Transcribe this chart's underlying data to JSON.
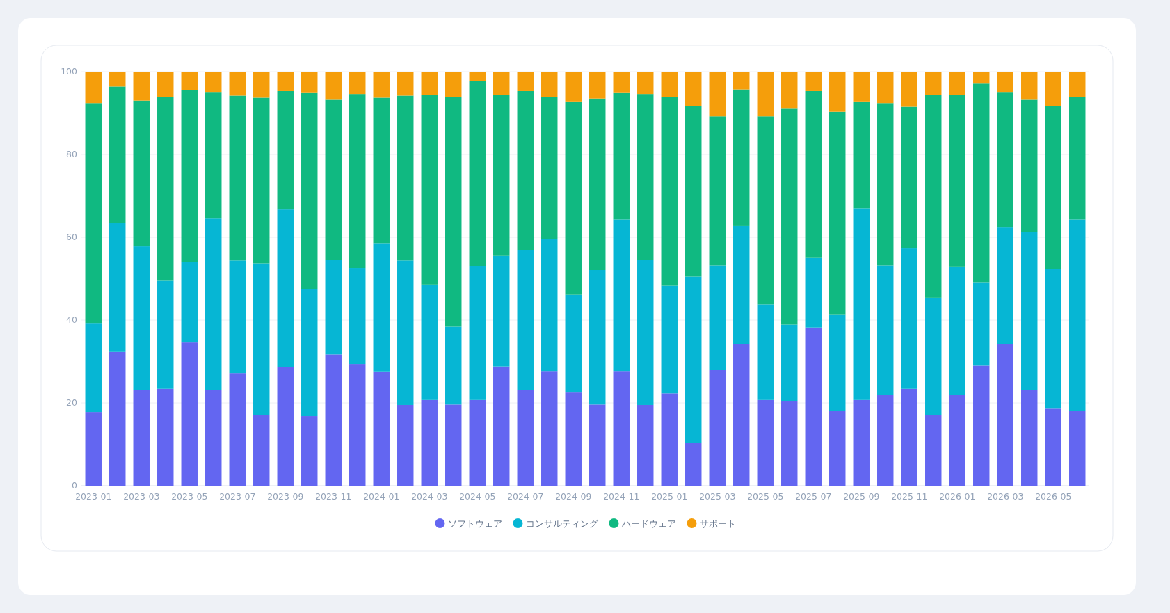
{
  "chart_data": {
    "type": "bar",
    "stacked": true,
    "categories": [
      "2023-01",
      null,
      "2023-03",
      null,
      "2023-05",
      null,
      "2023-07",
      null,
      "2023-09",
      null,
      "2023-11",
      null,
      "2024-01",
      null,
      "2024-03",
      null,
      "2024-05",
      null,
      "2024-07",
      null,
      "2024-09",
      null,
      "2024-11",
      null,
      "2025-01",
      null,
      "2025-03",
      null,
      "2025-05",
      null,
      "2025-07",
      null,
      "2025-09",
      null,
      "2025-11",
      null,
      "2026-01",
      null,
      "2026-03",
      null,
      "2026-05",
      null
    ],
    "ylim": [
      0,
      100
    ],
    "yticks": [
      0,
      20,
      40,
      60,
      80,
      100
    ],
    "grid": "y",
    "legend": "bottom",
    "series": [
      {
        "name": "ソフトウェア",
        "color": "#6366f1",
        "values": [
          17.8,
          32.3,
          23.1,
          23.4,
          34.6,
          23.1,
          27.2,
          17.1,
          28.6,
          16.8,
          31.7,
          29.4,
          27.6,
          19.5,
          20.7,
          19.6,
          20.7,
          28.8,
          23.1,
          27.7,
          22.5,
          19.6,
          27.7,
          19.5,
          22.3,
          10.3,
          27.9,
          34.2,
          20.7,
          20.5,
          38.2,
          18.0,
          20.7,
          22.0,
          23.4,
          17.1,
          22.0,
          29.0,
          34.2,
          23.1,
          18.6,
          18.0
        ]
      },
      {
        "name": "コンサルティング",
        "color": "#06b6d4",
        "values": [
          21.5,
          31.1,
          34.7,
          26.1,
          19.5,
          41.4,
          27.2,
          36.6,
          38.1,
          30.6,
          22.9,
          23.2,
          31.0,
          34.9,
          27.9,
          18.8,
          32.3,
          26.7,
          33.8,
          31.9,
          23.6,
          32.5,
          36.6,
          35.1,
          26.0,
          40.2,
          25.3,
          28.5,
          23.1,
          18.4,
          16.8,
          23.4,
          46.3,
          31.2,
          33.9,
          28.3,
          30.8,
          20.0,
          28.3,
          38.2,
          33.7,
          46.3
        ]
      },
      {
        "name": "ハードウェア",
        "color": "#10b981",
        "values": [
          53.1,
          33.0,
          35.2,
          44.4,
          41.4,
          30.6,
          39.8,
          40.0,
          28.6,
          47.6,
          38.6,
          42.0,
          35.1,
          39.8,
          45.8,
          55.5,
          44.8,
          38.9,
          38.4,
          34.3,
          46.7,
          41.4,
          30.7,
          40.0,
          45.6,
          41.2,
          36.0,
          33.0,
          45.4,
          52.3,
          40.3,
          48.9,
          25.8,
          39.2,
          34.2,
          49.0,
          41.6,
          48.1,
          32.6,
          31.9,
          39.4,
          29.6
        ]
      },
      {
        "name": "サポート",
        "color": "#f59e0b",
        "values": [
          7.6,
          3.6,
          7.0,
          6.1,
          4.5,
          4.9,
          5.8,
          6.3,
          4.7,
          5.0,
          6.8,
          5.4,
          6.3,
          5.8,
          5.6,
          6.1,
          2.2,
          5.6,
          4.7,
          6.1,
          7.2,
          6.5,
          5.0,
          5.4,
          6.1,
          8.3,
          10.8,
          4.3,
          10.8,
          8.8,
          4.7,
          9.7,
          7.2,
          7.6,
          8.5,
          5.6,
          5.6,
          2.9,
          4.9,
          6.8,
          8.3,
          6.1
        ]
      }
    ]
  }
}
